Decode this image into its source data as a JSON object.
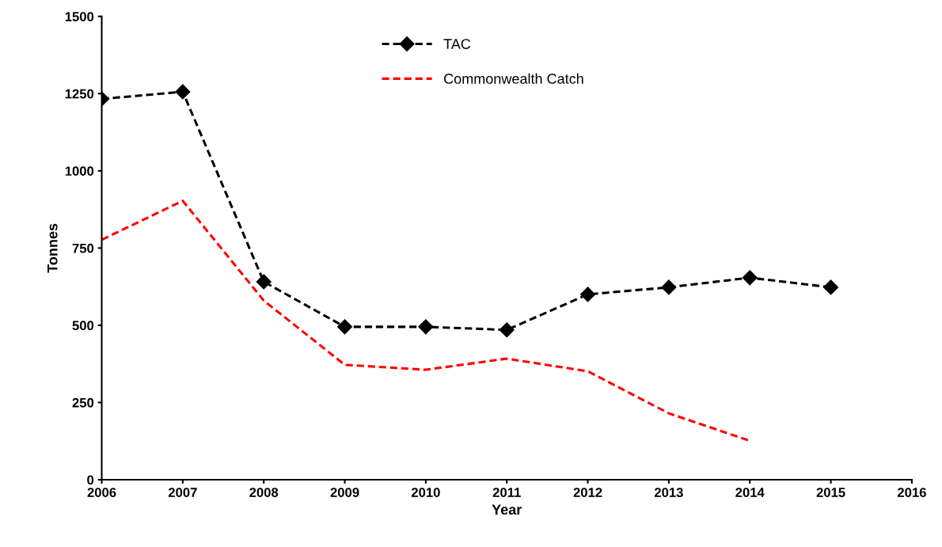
{
  "chart_data": {
    "type": "line",
    "xlabel": "Year",
    "ylabel": "Tonnes",
    "x": [
      2006,
      2007,
      2008,
      2009,
      2010,
      2011,
      2012,
      2013,
      2014,
      2015
    ],
    "series": [
      {
        "name": "TAC",
        "color": "#000000",
        "marker": "diamond",
        "line_style": "dashed",
        "values": [
          1233,
          1256,
          641,
          495,
          495,
          485,
          600,
          623,
          654,
          623
        ]
      },
      {
        "name": "Commonwealth Catch",
        "color": "#ff0000",
        "marker": "none",
        "line_style": "dashed",
        "values": [
          777,
          903,
          580,
          372,
          356,
          392,
          351,
          215,
          126,
          null
        ]
      }
    ],
    "xlim": [
      2006,
      2016
    ],
    "xticks": [
      2006,
      2007,
      2008,
      2009,
      2010,
      2011,
      2012,
      2013,
      2014,
      2015,
      2016
    ],
    "ylim": [
      0,
      1500
    ],
    "yticks": [
      0,
      250,
      500,
      750,
      1000,
      1250,
      1500
    ],
    "grid": false,
    "legend": "top"
  }
}
